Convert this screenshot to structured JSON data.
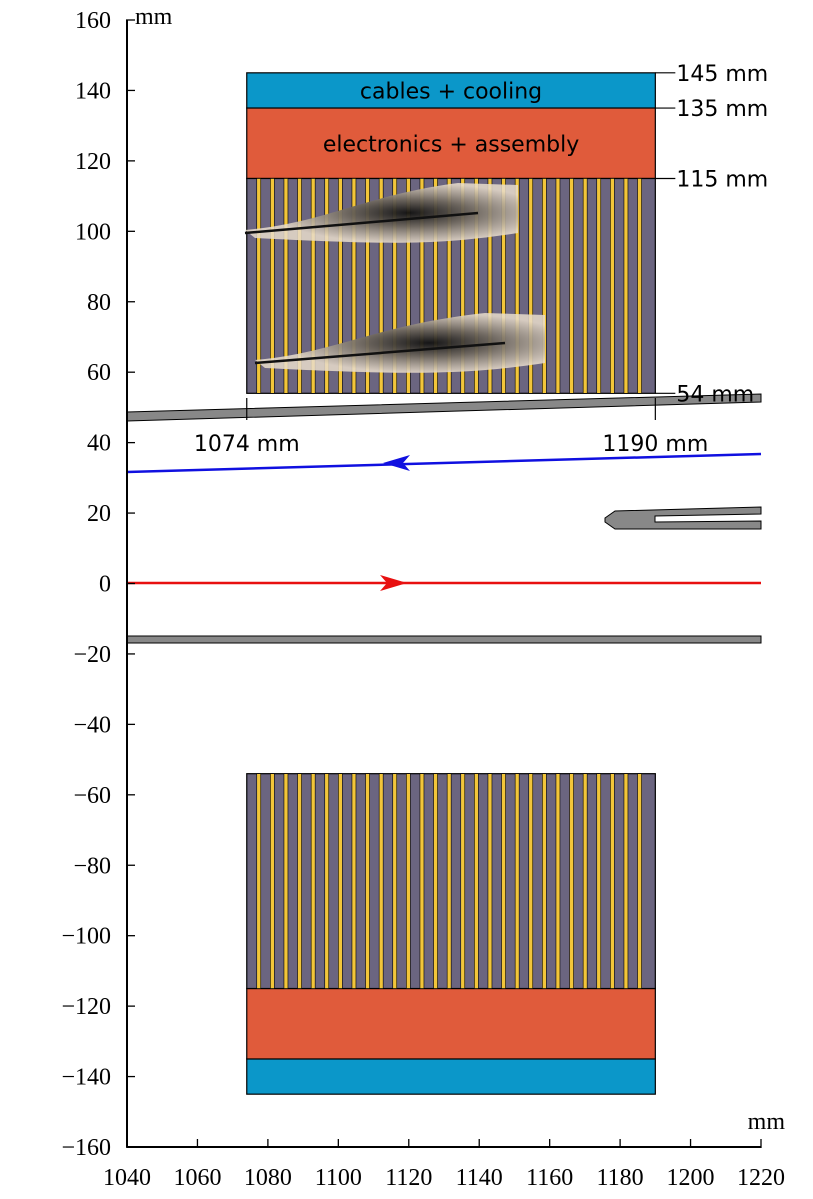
{
  "axes": {
    "xlim": [
      1040,
      1220
    ],
    "xticks": [
      1040,
      1060,
      1080,
      1100,
      1120,
      1140,
      1160,
      1180,
      1200,
      1220
    ],
    "ylim": [
      -160,
      160
    ],
    "yticks": [
      {
        "value": -160,
        "label": "−160"
      },
      {
        "value": -140,
        "label": "−140"
      },
      {
        "value": -120,
        "label": "−120"
      },
      {
        "value": -100,
        "label": "−100"
      },
      {
        "value": -80,
        "label": "−80"
      },
      {
        "value": -60,
        "label": "−60"
      },
      {
        "value": -40,
        "label": "−40"
      },
      {
        "value": -20,
        "label": "−20"
      },
      0,
      20,
      40,
      60,
      80,
      100,
      120,
      140,
      160
    ],
    "x_unit": "mm",
    "y_unit": "mm"
  },
  "detector": {
    "x_start": {
      "value": 1074,
      "label": "1074 mm"
    },
    "x_end": {
      "value": 1190,
      "label": "1190 mm"
    },
    "layers": [
      {
        "name": "cables + cooling",
        "color": "#0b97c9",
        "r_in": 135,
        "r_out": 145
      },
      {
        "name": "electronics + assembly",
        "color": "#e05b3b",
        "r_in": 115,
        "r_out": 135
      },
      {
        "color": "#6b6580",
        "r_in": 54,
        "r_out": 115
      }
    ],
    "radius_labels": [
      {
        "value": 145,
        "label": "145 mm"
      },
      {
        "value": 135,
        "label": "135 mm"
      },
      {
        "value": 115,
        "label": "115 mm"
      },
      {
        "value": 54,
        "label": "54 mm"
      }
    ]
  }
}
